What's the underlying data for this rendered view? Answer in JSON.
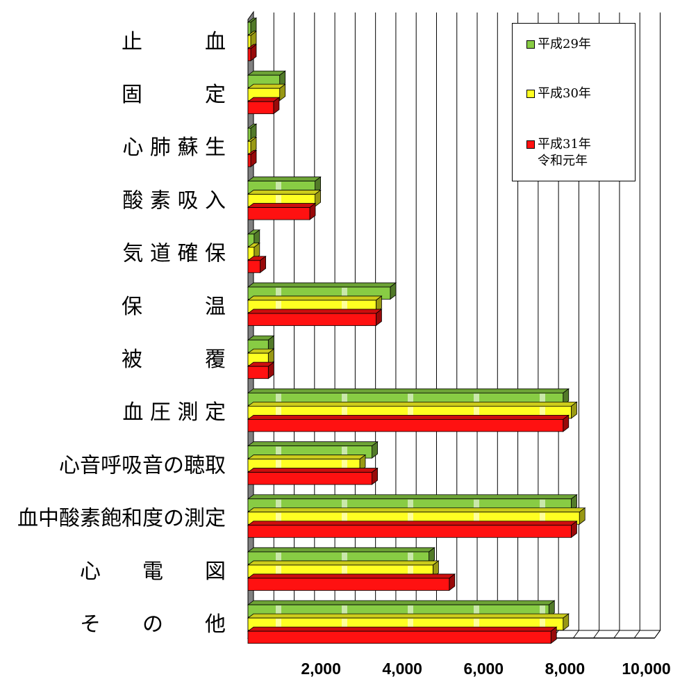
{
  "chart_data": {
    "type": "bar",
    "orientation": "horizontal",
    "style": "3d-clustered",
    "categories": [
      "止　　　血",
      "固　　　定",
      "心 肺 蘇 生",
      "酸 素 吸 入",
      "気 道 確 保",
      "保　　　温",
      "被　　　覆",
      "血 圧 測 定",
      "心音呼吸音の聴取",
      "血中酸素飽和度の測定",
      "心　　電　　図",
      "そ　　の　　他"
    ],
    "series": [
      {
        "name": "平成29年",
        "color": "#88cc44",
        "values": [
          30,
          780,
          50,
          1650,
          150,
          3500,
          500,
          7750,
          3050,
          7950,
          4450,
          7400
        ]
      },
      {
        "name": "平成30年",
        "color": "#ffff22",
        "values": [
          30,
          780,
          50,
          1650,
          150,
          3150,
          500,
          7950,
          2750,
          8150,
          4550,
          7750
        ]
      },
      {
        "name": "平成31年\n令和元年",
        "color": "#ff1111",
        "values": [
          30,
          630,
          50,
          1520,
          300,
          3150,
          500,
          7750,
          3050,
          7950,
          4950,
          7450
        ]
      }
    ],
    "x_ticks": [
      "2,000",
      "4,000",
      "6,000",
      "8,000",
      "10,000"
    ],
    "xlim": [
      0,
      10000
    ],
    "grid": "vertical",
    "legend_position": "top-right"
  },
  "legend": {
    "items": [
      {
        "label": "平成29年",
        "color": "#88cc44"
      },
      {
        "label": "平成30年",
        "color": "#ffff22"
      },
      {
        "label": "平成31年\n令和元年",
        "color": "#ff1111"
      }
    ]
  }
}
